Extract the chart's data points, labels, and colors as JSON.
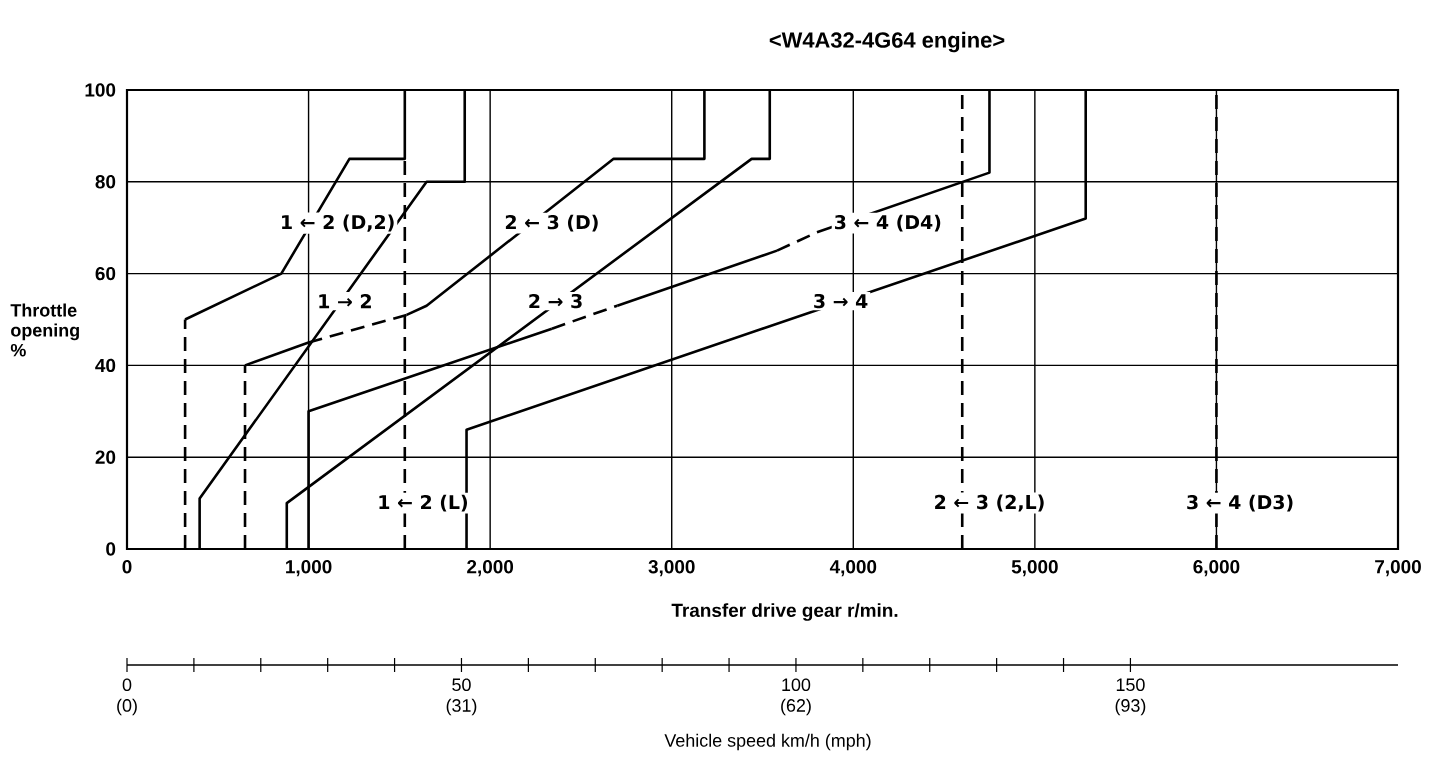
{
  "chart_data": {
    "type": "line",
    "title": "<W4A32-4G64 engine>",
    "xlabel": "Transfer drive gear r/min.",
    "ylabel": "Throttle opening %",
    "x2label": "Vehicle speed km/h (mph)",
    "xlim": [
      0,
      7000
    ],
    "ylim": [
      0,
      100
    ],
    "xticks": [
      0,
      {
        "value": 1000,
        "label": "1,000"
      },
      {
        "value": 2000,
        "label": "2,000"
      },
      {
        "value": 3000,
        "label": "3,000"
      },
      {
        "value": 4000,
        "label": "4,000"
      },
      {
        "value": 5000,
        "label": "5,000"
      },
      {
        "value": 6000,
        "label": "6,000"
      },
      {
        "value": 7000,
        "label": "7,000"
      }
    ],
    "yticks": [
      0,
      20,
      40,
      60,
      80,
      100
    ],
    "x2lim": [
      0,
      190
    ],
    "x2ticks": [
      0,
      50,
      100,
      150
    ],
    "grid": true,
    "marker": "none",
    "series": [
      {
        "color": "#000000",
        "line_style": "dashed",
        "x": [
          320,
          320
        ],
        "values": [
          0,
          50
        ]
      },
      {
        "color": "#000000",
        "line_style": "solid",
        "x": [
          320,
          850,
          1225,
          1530,
          1530
        ],
        "values": [
          50,
          60,
          85,
          85,
          100
        ]
      },
      {
        "color": "#000000",
        "line_style": "dashed",
        "x": [
          1530,
          1530
        ],
        "values": [
          0,
          85
        ]
      },
      {
        "color": "#000000",
        "line_style": "solid",
        "x": [
          400,
          400,
          1650,
          1860,
          1860
        ],
        "values": [
          0,
          11,
          80,
          80,
          100
        ]
      },
      {
        "color": "#000000",
        "line_style": "dashed",
        "x": [
          650,
          650
        ],
        "values": [
          0,
          40
        ]
      },
      {
        "color": "#000000",
        "line_style": "solid",
        "x": [
          650,
          1000
        ],
        "values": [
          40,
          45
        ]
      },
      {
        "color": "#000000",
        "line_style": "dashed",
        "x": [
          1000,
          1540
        ],
        "values": [
          45,
          51
        ]
      },
      {
        "color": "#000000",
        "line_style": "solid",
        "x": [
          1540,
          1650,
          2680,
          3180,
          3180
        ],
        "values": [
          51,
          53,
          85,
          85,
          100
        ]
      },
      {
        "color": "#000000",
        "line_style": "solid",
        "x": [
          1000,
          1000,
          2340
        ],
        "values": [
          0,
          30,
          48
        ]
      },
      {
        "color": "#000000",
        "line_style": "dashed",
        "x": [
          2340,
          2700
        ],
        "values": [
          48,
          53
        ]
      },
      {
        "color": "#000000",
        "line_style": "solid",
        "x": [
          2700,
          3580
        ],
        "values": [
          53,
          65
        ]
      },
      {
        "color": "#000000",
        "line_style": "dashed",
        "x": [
          3580,
          3800
        ],
        "values": [
          65,
          69
        ]
      },
      {
        "color": "#000000",
        "line_style": "solid",
        "x": [
          3800,
          4750,
          4750
        ],
        "values": [
          69,
          82,
          100
        ]
      },
      {
        "color": "#000000",
        "line_style": "solid",
        "x": [
          880,
          880,
          3440,
          3540,
          3540
        ],
        "values": [
          0,
          10,
          85,
          85,
          100
        ]
      },
      {
        "color": "#000000",
        "line_style": "solid",
        "x": [
          1870,
          1870,
          5280,
          5280
        ],
        "values": [
          0,
          26,
          72,
          100
        ]
      },
      {
        "color": "#000000",
        "line_style": "dashed",
        "x": [
          4600,
          4600
        ],
        "values": [
          0,
          100
        ]
      },
      {
        "color": "#000000",
        "line_style": "dashed",
        "x": [
          6000,
          6000
        ],
        "values": [
          0,
          100
        ]
      }
    ],
    "annotations": [
      "1 ← 2 (D,2)",
      "1 → 2",
      "1 ← 2 (L)",
      "2 ← 3 (D)",
      "2 → 3",
      "3 ← 4 (D4)",
      "3 → 4",
      "2 ← 3 (2,L)",
      "3 ← 4 (D3)",
      "(0)",
      "(31)",
      "(62)",
      "(93)"
    ]
  }
}
